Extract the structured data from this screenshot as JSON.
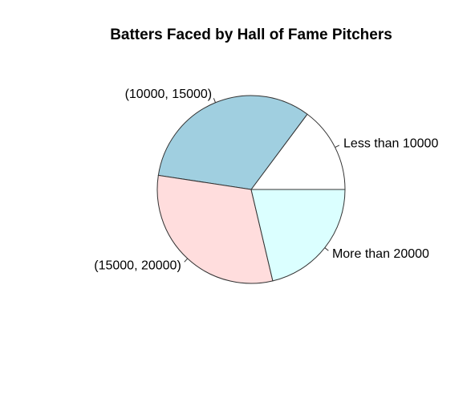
{
  "chart_data": {
    "type": "pie",
    "title": "Batters Faced by Hall of Fame Pitchers",
    "categories": [
      "Less than 10000",
      "(10000, 15000)",
      "(15000, 20000)",
      "More than 20000"
    ],
    "values": [
      14.8,
      32.8,
      31.1,
      21.3
    ],
    "colors": [
      "#ffffff",
      "#a0cfe0",
      "#ffdddd",
      "#dbffff"
    ],
    "start_angle_deg": 0,
    "direction": "counterclockwise"
  }
}
